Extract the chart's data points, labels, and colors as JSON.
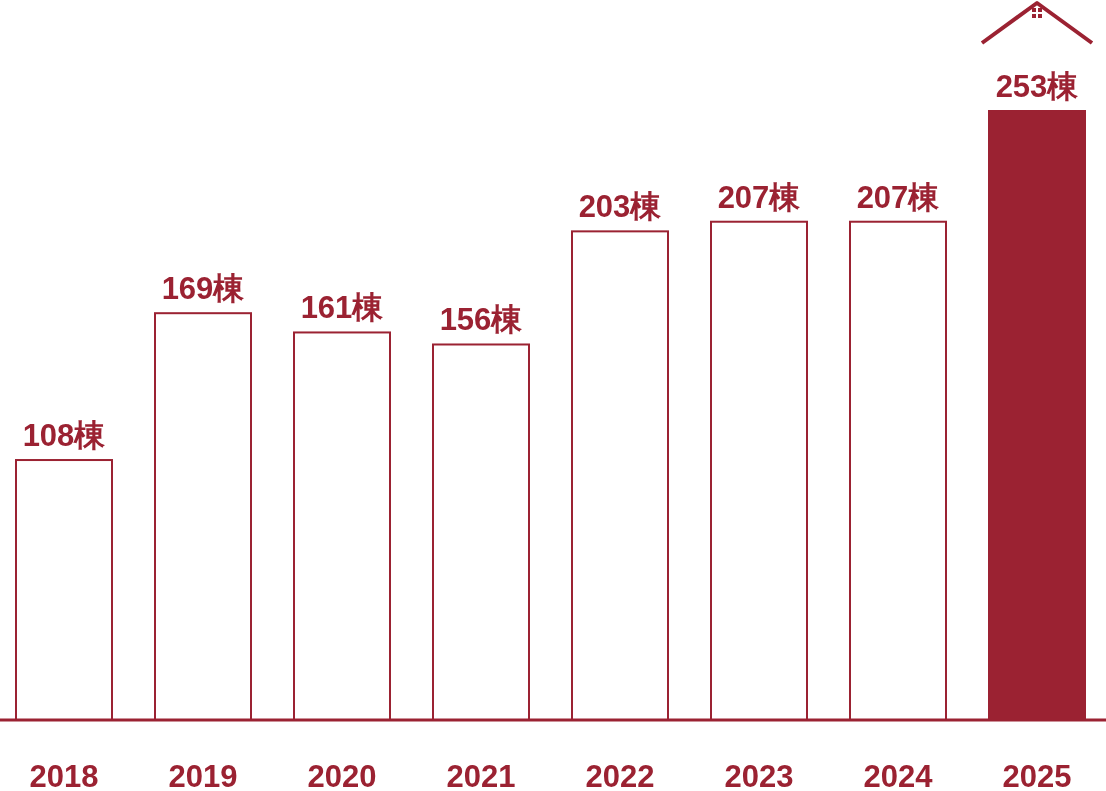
{
  "chart_data": {
    "type": "bar",
    "categories": [
      "2018",
      "2019",
      "2020",
      "2021",
      "2022",
      "2023",
      "2024",
      "2025"
    ],
    "values": [
      108,
      169,
      161,
      156,
      203,
      207,
      207,
      253
    ],
    "value_labels": [
      "108棟",
      "169棟",
      "161棟",
      "156棟",
      "203棟",
      "207棟",
      "207棟",
      "253棟"
    ],
    "colors": [
      "#ffffff",
      "#ffffff",
      "#ffffff",
      "#ffffff",
      "#ffffff",
      "#ffffff",
      "#ffffff",
      "#9b2232"
    ]
  }
}
